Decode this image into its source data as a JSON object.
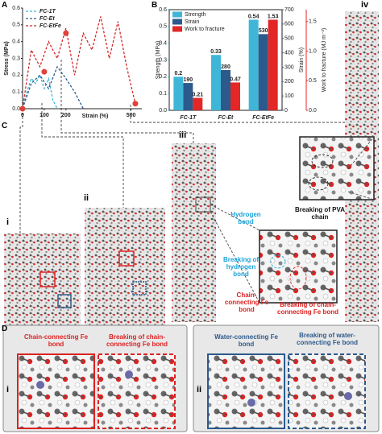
{
  "panel_labels": {
    "a": "A",
    "b": "B",
    "c": "C",
    "d": "D"
  },
  "chart_data": [
    {
      "type": "line",
      "ylabel": "Stress (MPa)",
      "xlabel": "Strain (%)",
      "xlim": [
        0,
        550
      ],
      "xticks": [
        0,
        100,
        200,
        500
      ],
      "ylim": [
        0,
        0.6
      ],
      "yticks": [
        {
          "value": 0,
          "label": "0.0"
        },
        0.1,
        0.2,
        0.3,
        0.4,
        0.5,
        0.6
      ],
      "legend": "upper left",
      "series": [
        {
          "name": "FC-1T",
          "color": "#3fb6d8",
          "x": [
            0,
            20,
            40,
            60,
            80,
            100,
            120,
            140,
            160
          ],
          "values": [
            0,
            0.1,
            0.18,
            0.15,
            0.2,
            0.12,
            0.18,
            0.05,
            0
          ]
        },
        {
          "name": "FC-Et",
          "color": "#2c5a8c",
          "x": [
            0,
            40,
            80,
            120,
            160,
            200,
            240,
            280
          ],
          "values": [
            0,
            0.15,
            0.2,
            0.12,
            0.25,
            0.18,
            0.1,
            0
          ]
        },
        {
          "name": "FC-EtFe",
          "color": "#d42a2a",
          "x": [
            0,
            40,
            80,
            120,
            160,
            200,
            240,
            280,
            320,
            360,
            400,
            440,
            480,
            520
          ],
          "values": [
            0,
            0.35,
            0.25,
            0.4,
            0.3,
            0.48,
            0.2,
            0.45,
            0.35,
            0.55,
            0.3,
            0.52,
            0.25,
            0.03
          ]
        }
      ],
      "markers": {
        "color": "#e0413a",
        "x": [
          0,
          100,
          200,
          520
        ],
        "y": [
          0,
          0.22,
          0.45,
          0.03
        ]
      }
    },
    {
      "type": "bar",
      "categories": [
        "FC-1T",
        "FC-Et",
        "FC-EtFe"
      ],
      "ylabel": "Strength (MPa)",
      "y2label": "Strain (%)",
      "y3label": "Work to fracture (MJ m⁻³)",
      "ylim": [
        0,
        0.6
      ],
      "yticks": [
        {
          "value": 0,
          "label": "0.0"
        },
        0.1,
        0.2,
        0.3,
        0.4,
        0.5,
        0.6
      ],
      "y2lim": [
        0,
        700
      ],
      "y2ticks": [
        0,
        100,
        200,
        300,
        400,
        500,
        600,
        700
      ],
      "y3lim": [
        0,
        1.7
      ],
      "y3ticks": [
        {
          "value": 0,
          "label": "0.0"
        },
        0.5,
        {
          "value": 1,
          "label": "1.0"
        },
        1.5
      ],
      "legend": "upper left",
      "series": [
        {
          "name": "Strength",
          "color": "#3fb6d8",
          "axis": "y",
          "values": [
            0.2,
            0.33,
            0.54
          ]
        },
        {
          "name": "Strain",
          "color": "#2c5a8c",
          "axis": "y2",
          "values": [
            190,
            280,
            530
          ]
        },
        {
          "name": "Work to fracture",
          "color": "#e32626",
          "axis": "y3",
          "values": [
            0.21,
            0.47,
            1.53
          ]
        }
      ]
    }
  ],
  "panel_c": {
    "roman": [
      "i",
      "ii",
      "iii",
      "iv"
    ],
    "annotations": [
      "Hydrogen bond",
      "Breaking of PVA chain",
      "Breaking of hydrogen bond",
      "Chain-connecting Fe bond",
      "Breaking of chain-connecting Fe bond"
    ]
  },
  "panel_d": {
    "roman": [
      "i",
      "ii"
    ],
    "left": [
      "Chain-connecting Fe bond",
      "Breaking of chain-connecting Fe bond"
    ],
    "right": [
      "Water-connecting Fe bond",
      "Breaking of water-connecting Fe bond"
    ]
  }
}
